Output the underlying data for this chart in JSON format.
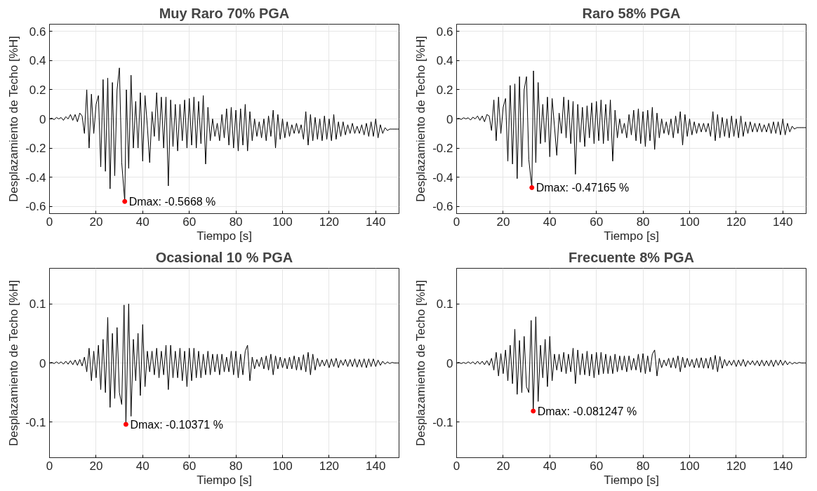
{
  "chart_data": [
    {
      "type": "line",
      "title": "Muy Raro 70% PGA",
      "xlabel": "Tiempo [s]",
      "ylabel": "Desplazamiento de Techo [%H]",
      "color": "#000000",
      "grid": true,
      "xlim": [
        0,
        150
      ],
      "ylim": [
        -0.65,
        0.65
      ],
      "xticks": [
        0,
        20,
        40,
        60,
        80,
        100,
        120,
        140
      ],
      "yticks": [
        -0.6,
        -0.4,
        -0.2,
        0,
        0.2,
        0.4,
        0.6
      ],
      "x": [
        0,
        1,
        2,
        3,
        4,
        5,
        6,
        7,
        8,
        9,
        10,
        11,
        12,
        13,
        14,
        15,
        16,
        17,
        18,
        19,
        20,
        21,
        22,
        23,
        24,
        25,
        26,
        27,
        28,
        29,
        30,
        31,
        32.3,
        33,
        34,
        35,
        36,
        37,
        38,
        39,
        40,
        41,
        42,
        43,
        44,
        45,
        46,
        47,
        48,
        49,
        50,
        51,
        52,
        53,
        54,
        55,
        56,
        57,
        58,
        59,
        60,
        61,
        62,
        63,
        64,
        65,
        66,
        67,
        68,
        69,
        70,
        71,
        72,
        73,
        74,
        75,
        76,
        77,
        78,
        79,
        80,
        81,
        82,
        83,
        84,
        85,
        86,
        87,
        88,
        89,
        90,
        91,
        92,
        93,
        94,
        95,
        96,
        97,
        98,
        99,
        100,
        101,
        102,
        103,
        104,
        105,
        106,
        107,
        108,
        109,
        110,
        111,
        112,
        113,
        114,
        115,
        116,
        117,
        118,
        119,
        120,
        121,
        122,
        123,
        124,
        125,
        126,
        127,
        128,
        129,
        130,
        131,
        132,
        133,
        134,
        135,
        136,
        137,
        138,
        139,
        140,
        141,
        142,
        143,
        144,
        145,
        146,
        147,
        148,
        149,
        150
      ],
      "values": [
        0,
        0.005,
        -0.005,
        0.01,
        0,
        0.01,
        -0.01,
        0.015,
        0,
        0.03,
        -0.01,
        0.03,
        -0.02,
        0.04,
        0.02,
        -0.1,
        0.2,
        -0.2,
        0.17,
        -0.1,
        0.1,
        0.16,
        -0.33,
        0.27,
        -0.36,
        0.28,
        -0.48,
        0.25,
        -0.39,
        0.2,
        0.35,
        -0.3,
        -0.5668,
        0.2,
        -0.34,
        0.3,
        -0.2,
        0.12,
        -0.2,
        0.18,
        -0.29,
        0.16,
        -0.05,
        -0.3,
        0.05,
        -0.12,
        0.18,
        -0.15,
        0.15,
        -0.2,
        0.15,
        -0.46,
        0.13,
        -0.19,
        0.1,
        -0.22,
        0.1,
        -0.15,
        0.13,
        -0.2,
        0.14,
        -0.18,
        0.15,
        -0.2,
        0.12,
        -0.17,
        0.16,
        -0.31,
        0.08,
        -0.15,
        0,
        -0.12,
        -0.03,
        -0.15,
        0.03,
        -0.13,
        0.07,
        -0.18,
        0.08,
        -0.2,
        0.06,
        -0.22,
        0.07,
        -0.18,
        0.1,
        -0.22,
        0.05,
        -0.15,
        0,
        -0.12,
        -0.02,
        -0.13,
        0,
        -0.15,
        0.02,
        -0.12,
        0.06,
        -0.2,
        0.03,
        -0.14,
        0,
        -0.13,
        -0.02,
        -0.12,
        -0.04,
        -0.1,
        -0.03,
        -0.1,
        -0.04,
        -0.14,
        0.05,
        -0.18,
        0.03,
        -0.15,
        0.01,
        -0.14,
        0,
        -0.15,
        0.02,
        -0.14,
        0,
        -0.15,
        0.03,
        -0.14,
        -0.02,
        -0.12,
        -0.02,
        -0.11,
        -0.04,
        -0.1,
        -0.03,
        -0.1,
        -0.05,
        -0.1,
        -0.04,
        -0.11,
        -0.03,
        -0.12,
        -0.02,
        -0.12,
        0,
        -0.13,
        -0.04,
        -0.1,
        -0.06,
        -0.08,
        -0.07,
        -0.07,
        -0.07,
        -0.07,
        -0.07
      ],
      "annotations": [
        {
          "text": "Dmax: -0.5668 %",
          "x": 32.3,
          "y": -0.5668
        }
      ]
    },
    {
      "type": "line",
      "title": "Raro 58% PGA",
      "xlabel": "Tiempo [s]",
      "ylabel": "Desplazamiento de Techo [%H]",
      "color": "#000000",
      "grid": true,
      "xlim": [
        0,
        150
      ],
      "ylim": [
        -0.65,
        0.65
      ],
      "xticks": [
        0,
        20,
        40,
        60,
        80,
        100,
        120,
        140
      ],
      "yticks": [
        -0.6,
        -0.4,
        -0.2,
        0,
        0.2,
        0.4,
        0.6
      ],
      "x": [
        0,
        1,
        2,
        3,
        4,
        5,
        6,
        7,
        8,
        9,
        10,
        11,
        12,
        13,
        14,
        15,
        16,
        17,
        18,
        19,
        20,
        21,
        22,
        23,
        24,
        25,
        26,
        27,
        28,
        29,
        30,
        31,
        32.3,
        33,
        34,
        35,
        36,
        37,
        38,
        39,
        40,
        41,
        42,
        43,
        44,
        45,
        46,
        47,
        48,
        49,
        50,
        51,
        52,
        53,
        54,
        55,
        56,
        57,
        58,
        59,
        60,
        61,
        62,
        63,
        64,
        65,
        66,
        67,
        68,
        69,
        70,
        71,
        72,
        73,
        74,
        75,
        76,
        77,
        78,
        79,
        80,
        81,
        82,
        83,
        84,
        85,
        86,
        87,
        88,
        89,
        90,
        91,
        92,
        93,
        94,
        95,
        96,
        97,
        98,
        99,
        100,
        101,
        102,
        103,
        104,
        105,
        106,
        107,
        108,
        109,
        110,
        111,
        112,
        113,
        114,
        115,
        116,
        117,
        118,
        119,
        120,
        121,
        122,
        123,
        124,
        125,
        126,
        127,
        128,
        129,
        130,
        131,
        132,
        133,
        134,
        135,
        136,
        137,
        138,
        139,
        140,
        141,
        142,
        143,
        144,
        145,
        146,
        147,
        148,
        149,
        150
      ],
      "values": [
        0,
        0.004,
        -0.004,
        0.008,
        0,
        0.008,
        -0.008,
        0.012,
        0,
        0.02,
        -0.01,
        0.02,
        -0.02,
        0.03,
        0.02,
        -0.08,
        0.13,
        -0.15,
        0.15,
        -0.1,
        0.08,
        0.14,
        -0.29,
        0.23,
        -0.31,
        0.24,
        -0.41,
        0.29,
        -0.33,
        0.2,
        0.29,
        -0.28,
        -0.47165,
        0.33,
        -0.3,
        0.25,
        -0.17,
        0.1,
        -0.16,
        0.15,
        -0.26,
        0.14,
        -0.05,
        -0.25,
        0.04,
        -0.1,
        0.15,
        -0.13,
        0.13,
        -0.17,
        0.12,
        -0.38,
        0.1,
        -0.16,
        0.08,
        -0.19,
        0.09,
        -0.13,
        0.11,
        -0.17,
        0.12,
        -0.15,
        0.13,
        -0.17,
        0.1,
        -0.15,
        0.13,
        -0.29,
        0.06,
        -0.13,
        0,
        -0.1,
        -0.03,
        -0.13,
        0.03,
        -0.11,
        0.06,
        -0.15,
        0.07,
        -0.17,
        0.05,
        -0.19,
        0.06,
        -0.15,
        0.08,
        -0.21,
        0.04,
        -0.13,
        0,
        -0.1,
        -0.02,
        -0.11,
        0,
        -0.13,
        0.02,
        -0.1,
        0.05,
        -0.18,
        0.03,
        -0.12,
        0,
        -0.11,
        -0.02,
        -0.1,
        -0.03,
        -0.09,
        -0.03,
        -0.09,
        -0.03,
        -0.12,
        0.05,
        -0.15,
        0.03,
        -0.13,
        0.01,
        -0.12,
        0,
        -0.13,
        0.02,
        -0.12,
        0,
        -0.13,
        0.02,
        -0.12,
        -0.02,
        -0.1,
        -0.02,
        -0.09,
        -0.03,
        -0.09,
        -0.03,
        -0.09,
        -0.04,
        -0.09,
        -0.03,
        -0.1,
        -0.02,
        -0.1,
        -0.02,
        -0.11,
        0,
        -0.11,
        -0.03,
        -0.09,
        -0.05,
        -0.07,
        -0.06,
        -0.06,
        -0.06,
        -0.06,
        -0.06
      ],
      "annotations": [
        {
          "text": "Dmax: -0.47165 %",
          "x": 32.3,
          "y": -0.47165
        }
      ]
    },
    {
      "type": "line",
      "title": "Ocasional 10 % PGA",
      "xlabel": "Tiempo [s]",
      "ylabel": "Desplazamiento de Techo [%H]",
      "color": "#000000",
      "grid": true,
      "xlim": [
        0,
        150
      ],
      "ylim": [
        -0.16,
        0.16
      ],
      "xticks": [
        0,
        20,
        40,
        60,
        80,
        100,
        120,
        140
      ],
      "yticks": [
        -0.1,
        0,
        0.1
      ],
      "x": [
        0,
        1,
        2,
        3,
        4,
        5,
        6,
        7,
        8,
        9,
        10,
        11,
        12,
        13,
        14,
        15,
        16,
        17,
        18,
        19,
        20,
        21,
        22,
        23,
        24,
        25,
        26,
        27,
        28,
        29,
        30,
        31,
        32,
        32.8,
        34,
        35,
        36,
        37,
        38,
        39,
        40,
        41,
        42,
        43,
        44,
        45,
        46,
        47,
        48,
        49,
        50,
        51,
        52,
        53,
        54,
        55,
        56,
        57,
        58,
        59,
        60,
        61,
        62,
        63,
        64,
        65,
        66,
        67,
        68,
        69,
        70,
        71,
        72,
        73,
        74,
        75,
        76,
        77,
        78,
        79,
        80,
        81,
        82,
        83,
        84,
        85,
        86,
        87,
        88,
        89,
        90,
        91,
        92,
        93,
        94,
        95,
        96,
        97,
        98,
        99,
        100,
        101,
        102,
        103,
        104,
        105,
        106,
        107,
        108,
        109,
        110,
        111,
        112,
        113,
        114,
        115,
        116,
        117,
        118,
        119,
        120,
        121,
        122,
        123,
        124,
        125,
        126,
        127,
        128,
        129,
        130,
        131,
        132,
        133,
        134,
        135,
        136,
        137,
        138,
        139,
        140,
        141,
        142,
        143,
        144,
        145,
        146,
        147,
        148,
        149,
        150
      ],
      "values": [
        0,
        0.001,
        -0.001,
        0.002,
        -0.001,
        0.002,
        -0.002,
        0.003,
        -0.002,
        0.004,
        -0.003,
        0.005,
        -0.004,
        0.006,
        -0.005,
        0.01,
        -0.015,
        0.025,
        -0.03,
        0.02,
        -0.025,
        0.03,
        -0.045,
        0.04,
        -0.05,
        0.077,
        -0.075,
        0.05,
        -0.06,
        0.06,
        -0.05,
        -0.07,
        0.098,
        -0.10371,
        0.1,
        -0.09,
        0.04,
        -0.03,
        0.05,
        -0.055,
        0.065,
        -0.04,
        0.02,
        -0.015,
        0.02,
        -0.02,
        0.025,
        -0.025,
        0.02,
        -0.02,
        0.03,
        -0.045,
        0.03,
        -0.025,
        0.02,
        -0.025,
        0.025,
        -0.03,
        0.02,
        -0.04,
        0.025,
        -0.03,
        0.025,
        -0.025,
        0.02,
        -0.025,
        0.015,
        -0.02,
        0.02,
        -0.02,
        0.015,
        -0.015,
        0.015,
        -0.02,
        0.015,
        -0.015,
        0.01,
        -0.015,
        0.02,
        -0.02,
        0.02,
        -0.025,
        0.015,
        -0.02,
        0.02,
        0.03,
        -0.03,
        0.01,
        -0.01,
        0.006,
        -0.006,
        0.01,
        -0.01,
        0.012,
        -0.012,
        0.015,
        -0.02,
        0.012,
        -0.01,
        0.01,
        -0.008,
        0.008,
        -0.01,
        0.01,
        -0.01,
        0.012,
        -0.012,
        0.01,
        -0.012,
        0.014,
        -0.015,
        0.018,
        -0.02,
        0.015,
        -0.012,
        0.008,
        -0.006,
        0.005,
        -0.005,
        0.006,
        -0.008,
        0.007,
        -0.006,
        0.008,
        -0.008,
        0.005,
        -0.004,
        0.006,
        -0.006,
        0.006,
        -0.006,
        0.007,
        -0.007,
        0.006,
        -0.007,
        0.007,
        -0.008,
        0.007,
        -0.006,
        0.007,
        -0.006,
        0.005,
        -0.004,
        0.003,
        -0.002,
        0.002,
        -0.001,
        0.001,
        0,
        0,
        0
      ],
      "annotations": [
        {
          "text": "Dmax: -0.10371 %",
          "x": 32.8,
          "y": -0.10371
        }
      ]
    },
    {
      "type": "line",
      "title": "Frecuente 8% PGA",
      "xlabel": "Tiempo [s]",
      "ylabel": "Desplazamiento de Techo [%H]",
      "color": "#000000",
      "grid": true,
      "xlim": [
        0,
        150
      ],
      "ylim": [
        -0.16,
        0.16
      ],
      "xticks": [
        0,
        20,
        40,
        60,
        80,
        100,
        120,
        140
      ],
      "yticks": [
        -0.1,
        0,
        0.1
      ],
      "x": [
        0,
        1,
        2,
        3,
        4,
        5,
        6,
        7,
        8,
        9,
        10,
        11,
        12,
        13,
        14,
        15,
        16,
        17,
        18,
        19,
        20,
        21,
        22,
        23,
        24,
        25,
        26,
        27,
        28,
        29,
        30,
        31,
        32,
        32.9,
        34,
        35,
        36,
        37,
        38,
        39,
        40,
        41,
        42,
        43,
        44,
        45,
        46,
        47,
        48,
        49,
        50,
        51,
        52,
        53,
        54,
        55,
        56,
        57,
        58,
        59,
        60,
        61,
        62,
        63,
        64,
        65,
        66,
        67,
        68,
        69,
        70,
        71,
        72,
        73,
        74,
        75,
        76,
        77,
        78,
        79,
        80,
        81,
        82,
        83,
        84,
        85,
        86,
        87,
        88,
        89,
        90,
        91,
        92,
        93,
        94,
        95,
        96,
        97,
        98,
        99,
        100,
        101,
        102,
        103,
        104,
        105,
        106,
        107,
        108,
        109,
        110,
        111,
        112,
        113,
        114,
        115,
        116,
        117,
        118,
        119,
        120,
        121,
        122,
        123,
        124,
        125,
        126,
        127,
        128,
        129,
        130,
        131,
        132,
        133,
        134,
        135,
        136,
        137,
        138,
        139,
        140,
        141,
        142,
        143,
        144,
        145,
        146,
        147,
        148,
        149,
        150
      ],
      "values": [
        0,
        0.001,
        -0.001,
        0.001,
        -0.001,
        0.002,
        -0.001,
        0.002,
        -0.002,
        0.003,
        -0.002,
        0.003,
        -0.003,
        0.004,
        -0.004,
        0.008,
        -0.012,
        0.018,
        -0.022,
        0.016,
        -0.018,
        0.022,
        -0.03,
        0.03,
        -0.035,
        0.057,
        -0.053,
        0.038,
        -0.05,
        0.045,
        -0.04,
        -0.05,
        0.072,
        -0.081247,
        0.078,
        -0.065,
        0.03,
        -0.025,
        0.04,
        -0.04,
        0.045,
        -0.03,
        0.015,
        -0.012,
        0.015,
        -0.015,
        0.018,
        -0.018,
        0.015,
        -0.015,
        0.025,
        -0.035,
        0.022,
        -0.02,
        0.016,
        -0.02,
        0.02,
        -0.022,
        0.015,
        -0.025,
        0.018,
        -0.02,
        0.018,
        -0.018,
        0.015,
        -0.018,
        0.012,
        -0.018,
        0.015,
        -0.015,
        0.012,
        -0.012,
        0.012,
        -0.015,
        0.012,
        -0.012,
        0.008,
        -0.012,
        0.015,
        -0.016,
        0.016,
        -0.018,
        0.012,
        -0.015,
        0.015,
        0.022,
        -0.022,
        0.008,
        -0.008,
        0.005,
        -0.005,
        0.008,
        -0.008,
        0.009,
        -0.009,
        0.012,
        -0.015,
        0.01,
        -0.008,
        0.008,
        -0.006,
        0.006,
        -0.008,
        0.008,
        -0.008,
        0.009,
        -0.009,
        0.008,
        -0.009,
        0.01,
        -0.011,
        0.013,
        -0.015,
        0.011,
        -0.009,
        0.006,
        -0.005,
        0.004,
        -0.004,
        0.005,
        -0.006,
        0.005,
        -0.005,
        0.006,
        -0.006,
        0.004,
        -0.003,
        0.004,
        -0.004,
        0.004,
        -0.005,
        0.005,
        -0.005,
        0.004,
        -0.005,
        0.005,
        -0.006,
        0.005,
        -0.004,
        0.005,
        -0.004,
        0.004,
        -0.003,
        0.002,
        -0.002,
        0.001,
        -0.001,
        0.001,
        0,
        0,
        0
      ],
      "annotations": [
        {
          "text": "Dmax: -0.081247 %",
          "x": 32.9,
          "y": -0.081247
        }
      ]
    }
  ]
}
